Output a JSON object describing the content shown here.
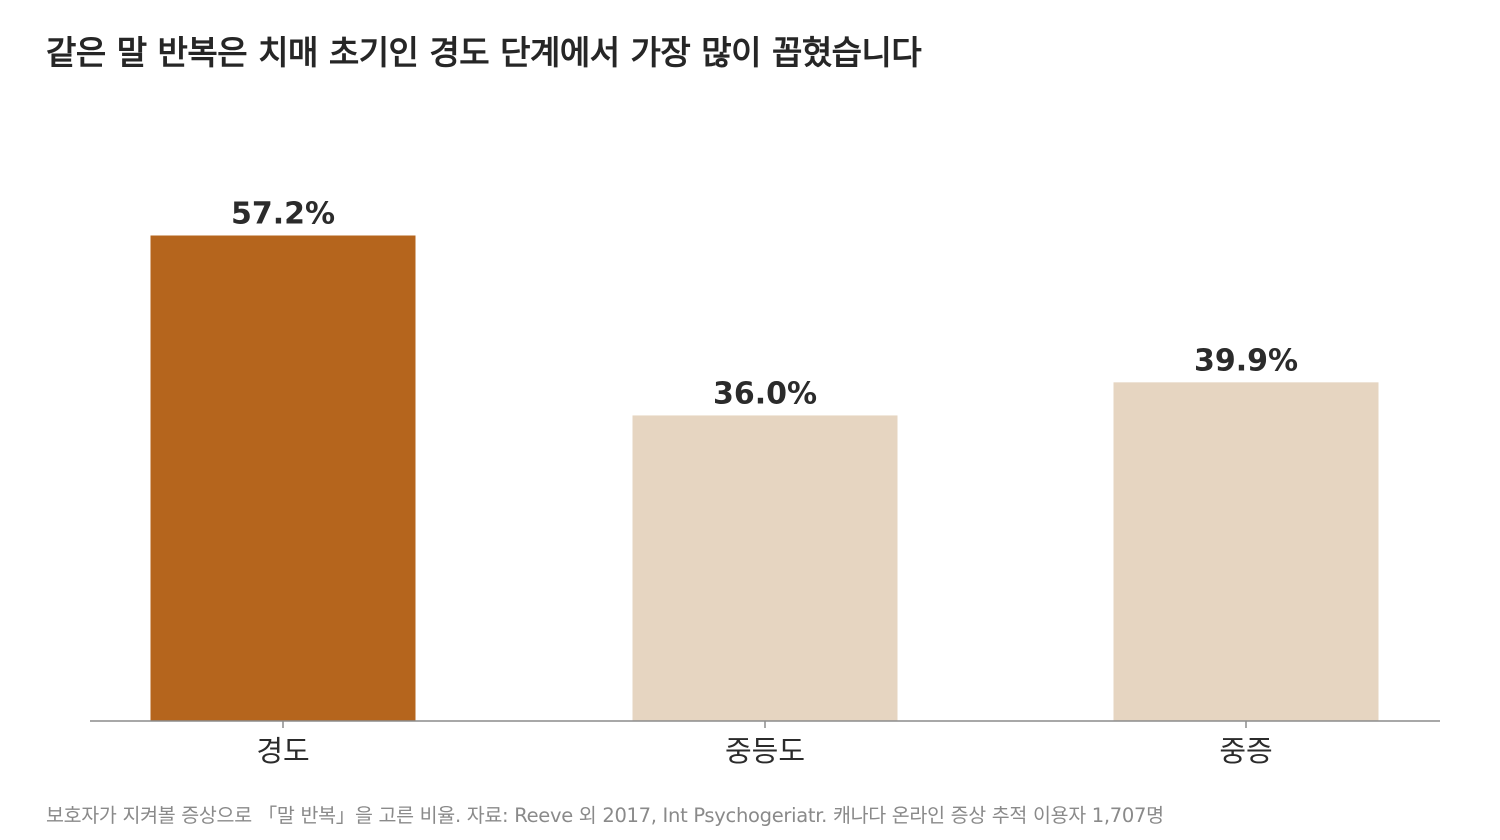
{
  "title": "같은 말 반복은 치매 초기인 경도 단계에서 가장 많이 꼽혔습니다",
  "source": "보호자가 지켜볼 증상으로 「말 반복」을 고른 비율. 자료: Reeve 외 2017, Int Psychogeriatr. 캐나다 온라인 증상 추적 이용자 1,707명",
  "colors": {
    "highlight": "#b5651d",
    "muted": "#e6d5c1",
    "axis": "#8c8c8c",
    "label": "#2b2b2b"
  },
  "chart_data": {
    "type": "bar",
    "categories": [
      "경도",
      "중등도",
      "중증"
    ],
    "values": [
      57.2,
      36.0,
      39.9
    ],
    "value_labels": [
      "57.2%",
      "36.0%",
      "39.9%"
    ],
    "highlight_index": 0,
    "ylim": [
      0,
      60
    ],
    "grid": false,
    "legend": "none"
  }
}
